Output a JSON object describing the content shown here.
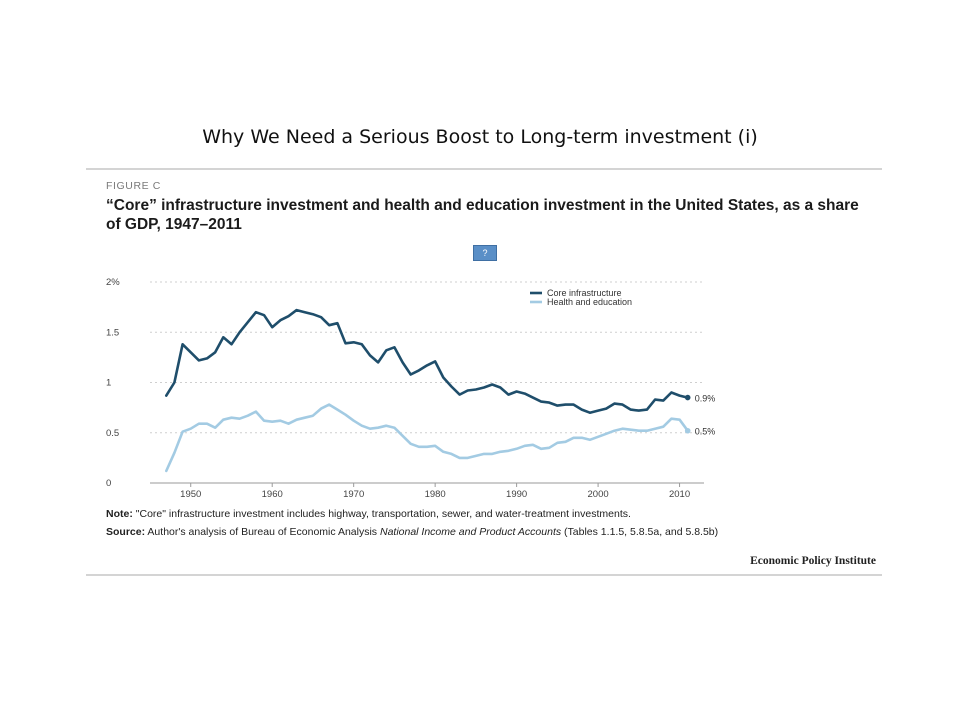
{
  "slide": {
    "title": "Why We Need a Serious Boost to Long-term investment (i)"
  },
  "figure": {
    "label": "FIGURE C",
    "title": "“Core” infrastructure investment and health and education investment in the United States, as a share of GDP, 1947–2011",
    "help_label": "?",
    "note_label": "Note:",
    "note_text": " \"Core\" infrastructure investment includes highway, transportation, sewer, and water-treatment investments.",
    "source_label": "Source:",
    "source_text_1": " Author's analysis of Bureau of Economic Analysis ",
    "source_italic": "National Income and Product Accounts",
    "source_text_2": " (Tables 1.1.5, 5.8.5a, and 5.8.5b)",
    "publisher": "Economic Policy Institute"
  },
  "chart_data": {
    "type": "line",
    "title": "",
    "xlabel": "",
    "ylabel": "",
    "xlim": [
      1945,
      2013
    ],
    "ylim": [
      0,
      2
    ],
    "x_ticks": [
      1950,
      1960,
      1970,
      1980,
      1990,
      2000,
      2010
    ],
    "y_ticks": [
      {
        "value": 0,
        "label": "0"
      },
      {
        "value": 0.5,
        "label": "0.5"
      },
      {
        "value": 1,
        "label": "1"
      },
      {
        "value": 1.5,
        "label": "1.5"
      },
      {
        "value": 2,
        "label": "2%"
      }
    ],
    "grid": "horizontal dotted",
    "legend_position": "top-right",
    "x": [
      1947,
      1948,
      1949,
      1950,
      1951,
      1952,
      1953,
      1954,
      1955,
      1956,
      1957,
      1958,
      1959,
      1960,
      1961,
      1962,
      1963,
      1964,
      1965,
      1966,
      1967,
      1968,
      1969,
      1970,
      1971,
      1972,
      1973,
      1974,
      1975,
      1976,
      1977,
      1978,
      1979,
      1980,
      1981,
      1982,
      1983,
      1984,
      1985,
      1986,
      1987,
      1988,
      1989,
      1990,
      1991,
      1992,
      1993,
      1994,
      1995,
      1996,
      1997,
      1998,
      1999,
      2000,
      2001,
      2002,
      2003,
      2004,
      2005,
      2006,
      2007,
      2008,
      2009,
      2010,
      2011
    ],
    "series": [
      {
        "name": "Core infrastructure",
        "color": "#1f4e6b",
        "end_label": "0.9%",
        "values": [
          0.87,
          1.0,
          1.38,
          1.3,
          1.22,
          1.24,
          1.3,
          1.45,
          1.38,
          1.5,
          1.6,
          1.7,
          1.67,
          1.55,
          1.62,
          1.66,
          1.72,
          1.7,
          1.68,
          1.65,
          1.57,
          1.59,
          1.39,
          1.4,
          1.38,
          1.27,
          1.2,
          1.32,
          1.35,
          1.2,
          1.08,
          1.12,
          1.17,
          1.21,
          1.05,
          0.96,
          0.88,
          0.92,
          0.93,
          0.95,
          0.98,
          0.95,
          0.88,
          0.91,
          0.89,
          0.85,
          0.81,
          0.8,
          0.77,
          0.78,
          0.78,
          0.73,
          0.7,
          0.72,
          0.74,
          0.79,
          0.78,
          0.73,
          0.72,
          0.73,
          0.83,
          0.82,
          0.9,
          0.87,
          0.85
        ]
      },
      {
        "name": "Health and education",
        "color": "#a3cbe3",
        "end_label": "0.5%",
        "values": [
          0.12,
          0.3,
          0.51,
          0.54,
          0.59,
          0.59,
          0.55,
          0.63,
          0.65,
          0.64,
          0.67,
          0.71,
          0.62,
          0.61,
          0.62,
          0.59,
          0.63,
          0.65,
          0.67,
          0.74,
          0.78,
          0.73,
          0.68,
          0.62,
          0.57,
          0.54,
          0.55,
          0.57,
          0.55,
          0.47,
          0.39,
          0.36,
          0.36,
          0.37,
          0.31,
          0.29,
          0.25,
          0.25,
          0.27,
          0.29,
          0.29,
          0.31,
          0.32,
          0.34,
          0.37,
          0.38,
          0.34,
          0.35,
          0.4,
          0.41,
          0.45,
          0.45,
          0.43,
          0.46,
          0.49,
          0.52,
          0.54,
          0.53,
          0.52,
          0.52,
          0.54,
          0.56,
          0.64,
          0.63,
          0.52
        ]
      }
    ]
  }
}
